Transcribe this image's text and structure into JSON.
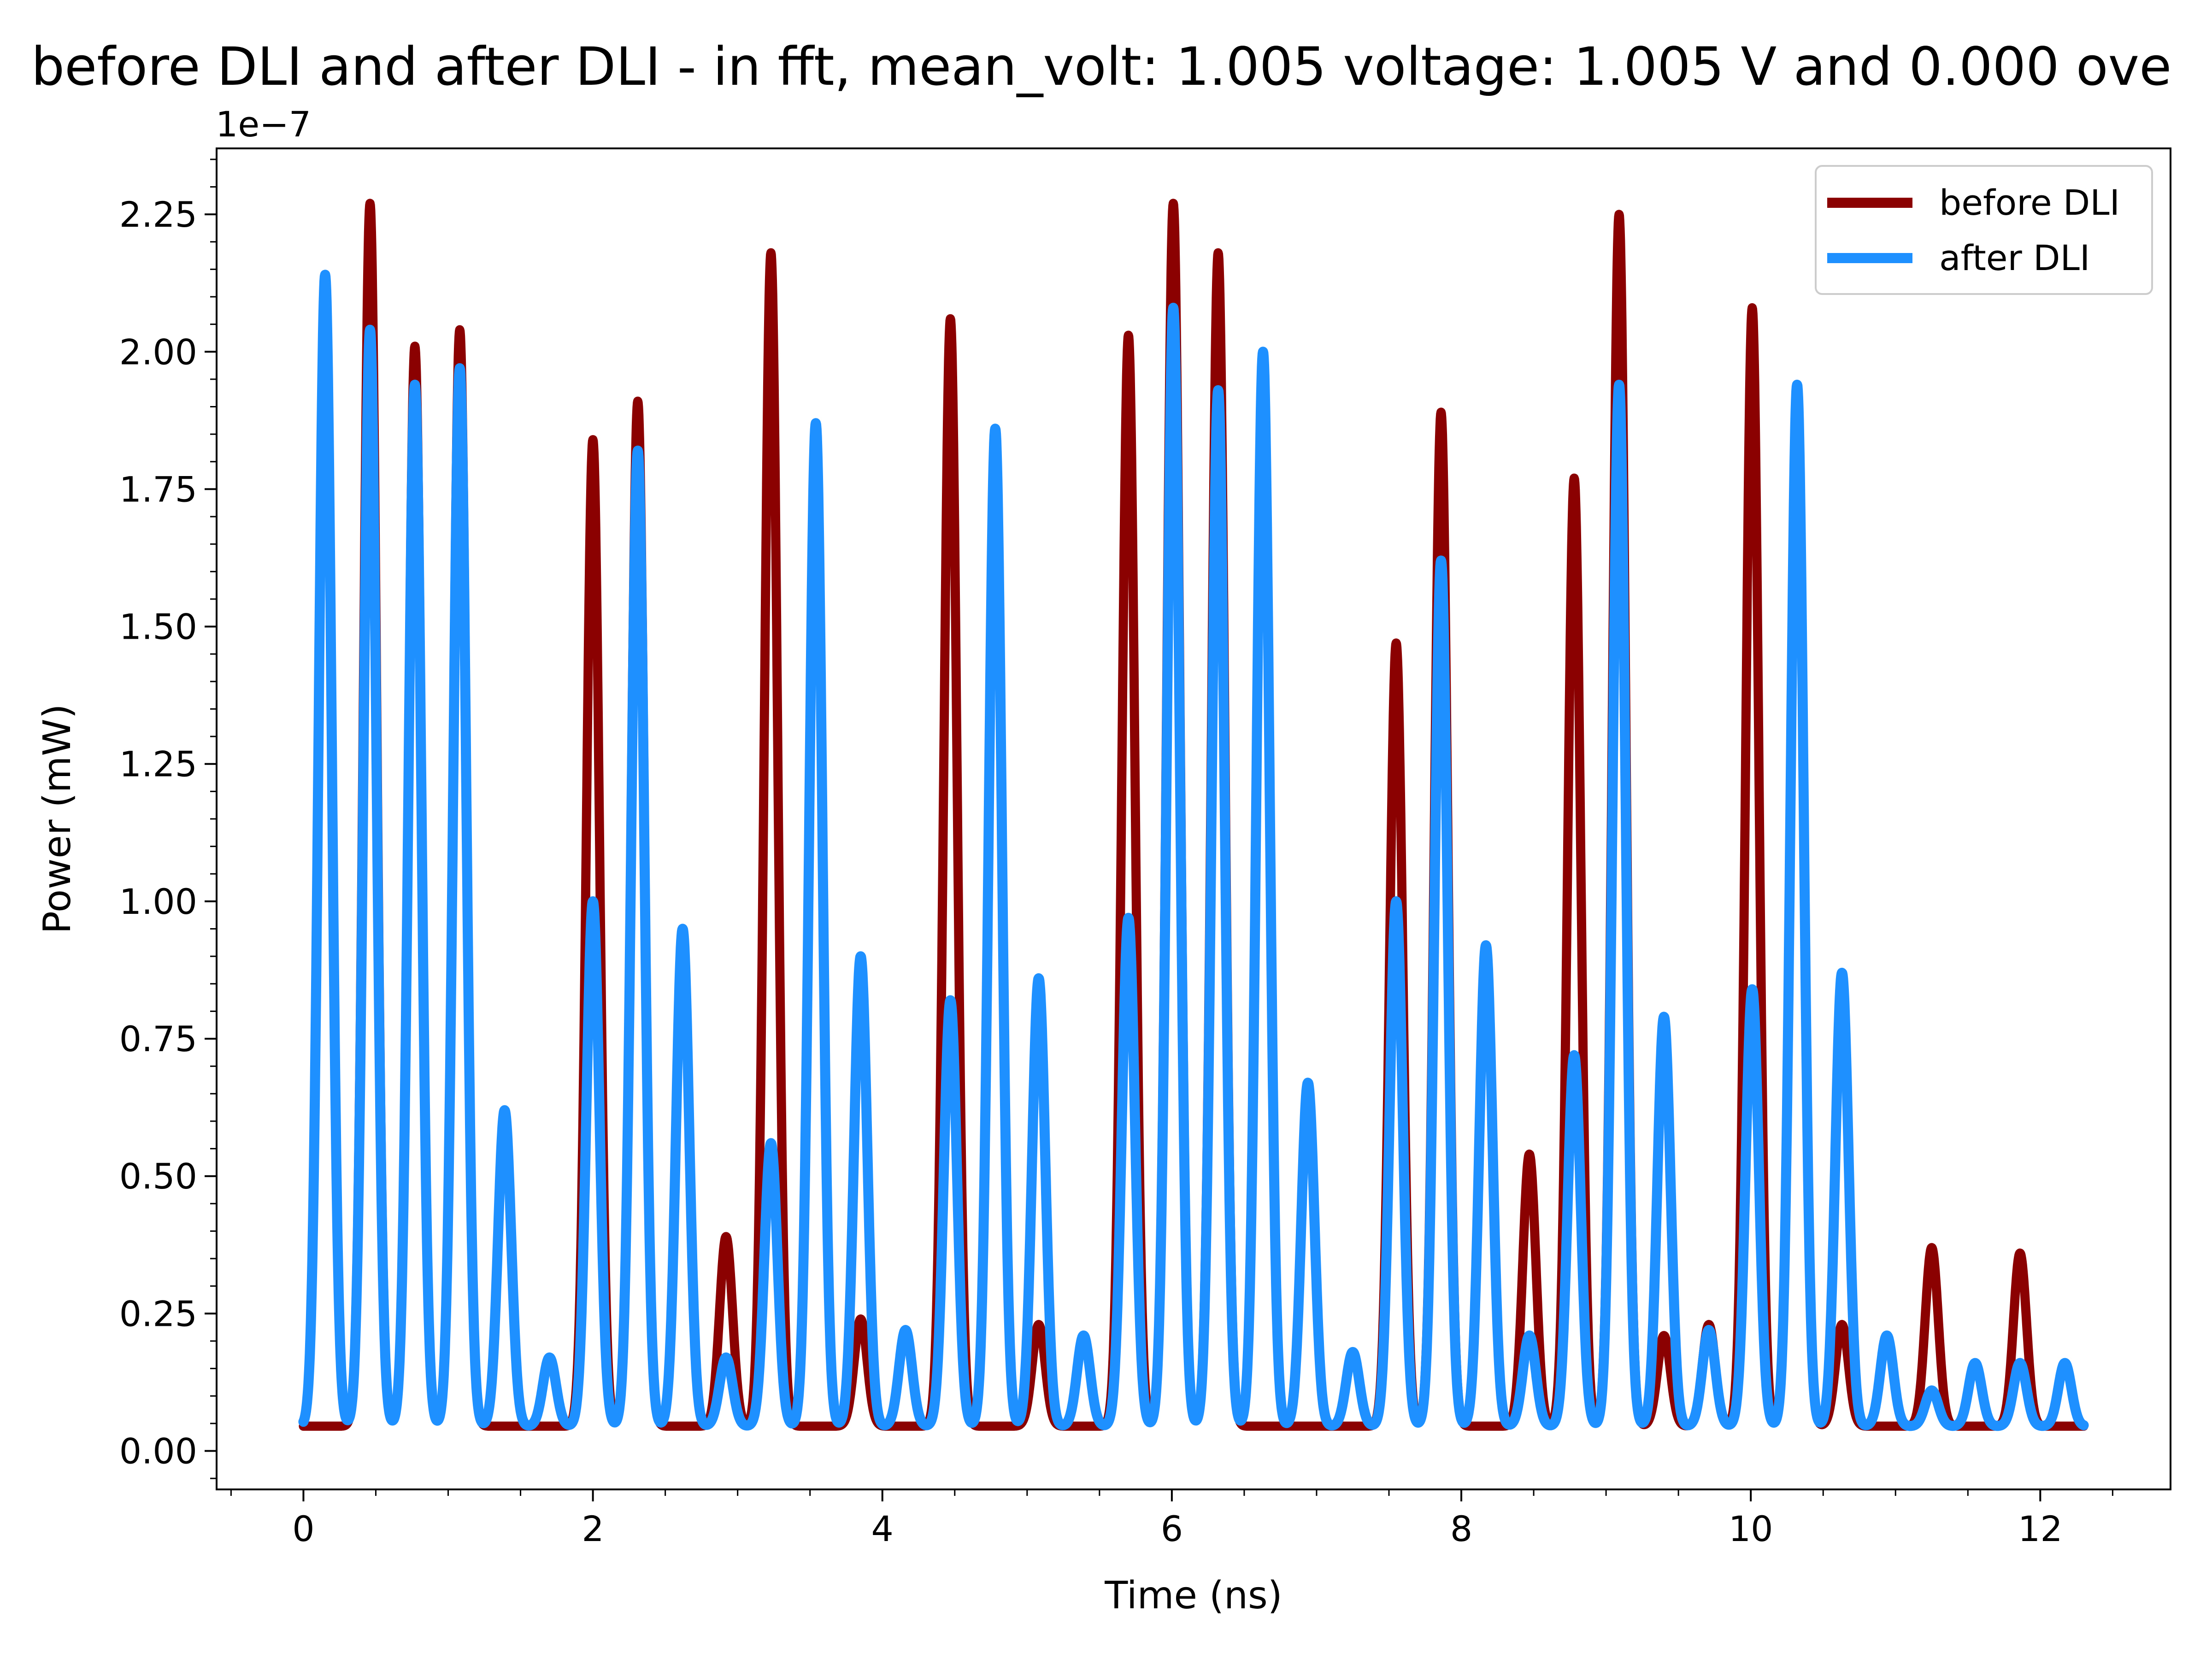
{
  "chart_data": {
    "type": "line",
    "title": "before DLI and after DLI  - in fft, mean_volt: 1.005 voltage: 1.005 V and 0.000 ove",
    "xlabel": "Time (ns)",
    "ylabel": "Power (mW)",
    "y_offset_text": "1e−7",
    "y_scale": 1e-07,
    "xlim": [
      -0.6,
      12.9
    ],
    "ylim": [
      -0.07,
      2.37
    ],
    "x_ticks": [
      0,
      2,
      4,
      6,
      8,
      10,
      12
    ],
    "x_tick_labels": [
      "0",
      "2",
      "4",
      "6",
      "8",
      "10",
      "12"
    ],
    "y_ticks": [
      0.0,
      0.25,
      0.5,
      0.75,
      1.0,
      1.25,
      1.5,
      1.75,
      2.0,
      2.25
    ],
    "y_tick_labels": [
      "0.00",
      "0.25",
      "0.50",
      "0.75",
      "1.00",
      "1.25",
      "1.50",
      "1.75",
      "2.00",
      "2.25"
    ],
    "x_range": [
      0,
      12.3
    ],
    "baseline": 0.045,
    "pulse_spacing_ns": 0.308,
    "pulse_width_ns": 0.045,
    "legend": {
      "position": "top-right"
    },
    "series": [
      {
        "name": "before DLI",
        "color": "#8b0000",
        "peaks": [
          [
            0.46,
            2.27
          ],
          [
            0.77,
            2.01
          ],
          [
            1.08,
            2.04
          ],
          [
            2.0,
            1.84
          ],
          [
            2.31,
            1.91
          ],
          [
            2.92,
            0.39
          ],
          [
            3.23,
            2.18
          ],
          [
            3.85,
            0.24
          ],
          [
            4.47,
            2.06
          ],
          [
            5.08,
            0.23
          ],
          [
            5.7,
            2.03
          ],
          [
            6.01,
            2.27
          ],
          [
            6.32,
            2.18
          ],
          [
            7.55,
            1.47
          ],
          [
            7.86,
            1.89
          ],
          [
            8.47,
            0.54
          ],
          [
            8.78,
            1.77
          ],
          [
            9.09,
            2.25
          ],
          [
            9.4,
            0.21
          ],
          [
            9.71,
            0.23
          ],
          [
            10.01,
            2.08
          ],
          [
            10.32,
            1.9
          ],
          [
            10.63,
            0.23
          ],
          [
            11.25,
            0.37
          ],
          [
            11.86,
            0.36
          ]
        ]
      },
      {
        "name": "after DLI",
        "color": "#1e90ff",
        "peaks": [
          [
            0.15,
            2.14
          ],
          [
            0.46,
            2.04
          ],
          [
            0.77,
            1.94
          ],
          [
            1.08,
            1.97
          ],
          [
            1.39,
            0.62
          ],
          [
            1.7,
            0.17
          ],
          [
            2.0,
            1.0
          ],
          [
            2.31,
            1.82
          ],
          [
            2.62,
            0.95
          ],
          [
            2.92,
            0.17
          ],
          [
            3.23,
            0.56
          ],
          [
            3.54,
            1.87
          ],
          [
            3.85,
            0.9
          ],
          [
            4.16,
            0.22
          ],
          [
            4.47,
            0.82
          ],
          [
            4.78,
            1.86
          ],
          [
            5.08,
            0.86
          ],
          [
            5.39,
            0.21
          ],
          [
            5.7,
            0.97
          ],
          [
            6.01,
            2.08
          ],
          [
            6.32,
            1.93
          ],
          [
            6.63,
            2.0
          ],
          [
            6.94,
            0.67
          ],
          [
            7.25,
            0.18
          ],
          [
            7.55,
            1.0
          ],
          [
            7.86,
            1.62
          ],
          [
            8.17,
            0.92
          ],
          [
            8.47,
            0.21
          ],
          [
            8.78,
            0.72
          ],
          [
            9.09,
            1.94
          ],
          [
            9.4,
            0.79
          ],
          [
            9.71,
            0.22
          ],
          [
            10.01,
            0.84
          ],
          [
            10.32,
            1.94
          ],
          [
            10.63,
            0.87
          ],
          [
            10.94,
            0.21
          ],
          [
            11.25,
            0.11
          ],
          [
            11.55,
            0.16
          ],
          [
            11.86,
            0.16
          ],
          [
            12.17,
            0.16
          ]
        ]
      }
    ]
  }
}
